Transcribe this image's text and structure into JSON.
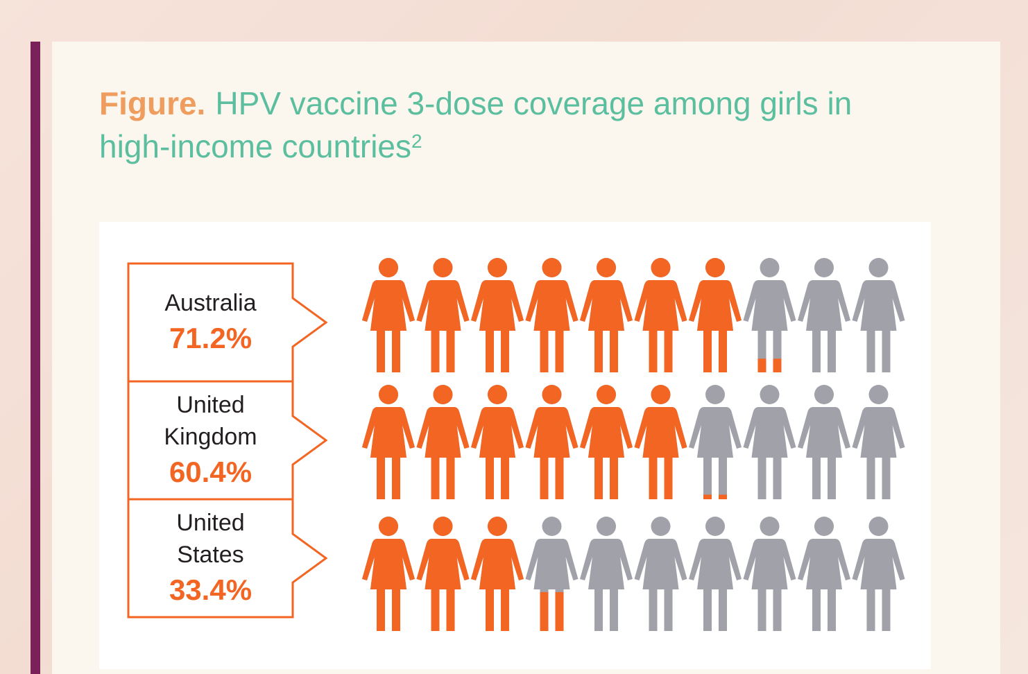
{
  "chart_data": {
    "type": "pictogram",
    "figure_label": "Figure.",
    "title": "HPV vaccine 3-dose coverage among girls in high-income countries",
    "title_note": "2",
    "categories": [
      "Australia",
      "United Kingdom",
      "United States"
    ],
    "values": [
      71.2,
      60.4,
      33.4
    ],
    "value_labels": [
      "71.2%",
      "60.4%",
      "33.4%"
    ],
    "color": "#f26522",
    "empty_color": "#a0a1a9"
  }
}
